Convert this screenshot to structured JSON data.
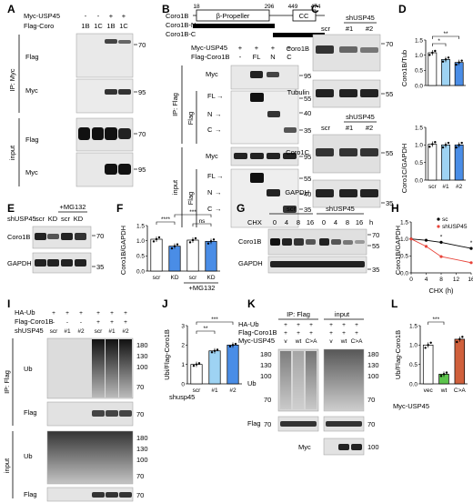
{
  "panels": {
    "A": {
      "letter": "A",
      "rows": [
        {
          "label": "Myc-USP45",
          "values": [
            "-",
            "-",
            "+",
            "+"
          ]
        },
        {
          "label": "Flag-Coro",
          "values": [
            "1B",
            "1C",
            "1B",
            "1C"
          ]
        }
      ],
      "ip_label": "IP: Myc",
      "input_label": "input",
      "blots": [
        "Flag",
        "Myc",
        "Flag",
        "Myc"
      ],
      "mw": [
        "70",
        "95",
        "70",
        "95"
      ]
    },
    "B": {
      "letter": "B",
      "domain": {
        "n18": "18",
        "n296": "296",
        "n449": "449",
        "n474": "474",
        "propeller": "β-Propeller",
        "cc": "CC"
      },
      "constructs": [
        "Coro1B",
        "Coro1B-N",
        "Coro1B-C"
      ],
      "rows": [
        {
          "label": "Myc-USP45",
          "values": [
            "+",
            "+",
            "+",
            "+"
          ]
        },
        {
          "label": "Flag-Coro1B",
          "values": [
            "-",
            "FL",
            "N",
            "C"
          ]
        }
      ],
      "ip_label": "IP: Flag",
      "input_label": "input",
      "blots": [
        "Myc",
        "Flag",
        "Myc",
        "Flag"
      ],
      "arrows": [
        "FL",
        "N",
        "C"
      ],
      "mw_ip_myc": [
        "95"
      ],
      "mw_ip_flag": [
        "55",
        "40",
        "35"
      ],
      "mw_in_myc": [
        "95"
      ],
      "mw_in_flag": [
        "55",
        "40",
        "35"
      ]
    },
    "C": {
      "letter": "C",
      "header": "shUSP45",
      "lanes": [
        "scr",
        "#1",
        "#2"
      ],
      "blots": [
        "Coro1B",
        "Tubulin",
        "Coro1C",
        "GAPDH"
      ],
      "mw": [
        "70",
        "55",
        "55",
        "35"
      ]
    },
    "D": {
      "letter": "D",
      "top_ylabel": "Coro1B/Tub",
      "bottom_ylabel": "Coro1C/GAPDH",
      "yticks": [
        "0.0",
        "0.5",
        "1.0",
        "1.5"
      ],
      "xlabels": [
        "scr",
        "#1",
        "#2"
      ],
      "sig": [
        "*",
        "**"
      ]
    },
    "E": {
      "letter": "E",
      "treatment": "+MG132",
      "row_label": "shUSP45",
      "lanes": [
        "scr",
        "KD",
        "scr",
        "KD"
      ],
      "blots": [
        "Coro1B",
        "GAPDH"
      ],
      "mw": [
        "70",
        "35"
      ]
    },
    "F": {
      "letter": "F",
      "ylabel": "Coro1B/GAPDH",
      "yticks": [
        "0.0",
        "0.5",
        "1.0",
        "1.5"
      ],
      "xlabels": [
        "scr",
        "KD",
        "scr",
        "KD"
      ],
      "treatment": "+MG132",
      "sig": [
        "****",
        "***",
        "ns"
      ]
    },
    "G": {
      "letter": "G",
      "groups": [
        "scr",
        "shUSP45"
      ],
      "row_label": "CHX",
      "times": [
        "0",
        "4",
        "8",
        "16",
        "0",
        "4",
        "8",
        "16"
      ],
      "unit": "h",
      "blots": [
        "Coro1B",
        "GAPDH"
      ],
      "mw": [
        "70",
        "55",
        "35"
      ]
    },
    "H": {
      "letter": "H",
      "ylabel": "Coro1B/GAPDH",
      "xlabel": "CHX (h)",
      "yticks": [
        "0.0",
        "0.5",
        "1.0",
        "1.5"
      ],
      "xticks": [
        "0",
        "4",
        "8",
        "12",
        "16"
      ],
      "legend": [
        "sc",
        "shUSP45"
      ],
      "sig": [
        "*",
        "*"
      ]
    },
    "I": {
      "letter": "I",
      "rows": [
        {
          "label": "HA-Ub",
          "values": [
            "+",
            "+",
            "+",
            "+",
            "+",
            "+"
          ]
        },
        {
          "label": "Flag-Coro1B",
          "values": [
            "-",
            "-",
            "-",
            "+",
            "+",
            "+"
          ]
        },
        {
          "label": "shUSP45",
          "values": [
            "scr",
            "#1",
            "#2",
            "scr",
            "#1",
            "#2"
          ]
        }
      ],
      "ip_label": "IP: Flag",
      "input_label": "input",
      "blots": [
        "Ub",
        "Flag",
        "Ub",
        "Flag"
      ],
      "mw_ub": [
        "180",
        "130",
        "100",
        "70"
      ],
      "mw_flag": [
        "70"
      ],
      "mw_in_ub": [
        "180",
        "130",
        "100",
        "70"
      ],
      "mw_in_flag": [
        "70"
      ]
    },
    "J": {
      "letter": "J",
      "ylabel": "Ubi/Flag-Coro1B",
      "yticks": [
        "0",
        "1",
        "2",
        "3"
      ],
      "xlabels": [
        "scr",
        "#1",
        "#2"
      ],
      "group_label": "shusp45",
      "sig": [
        "**",
        "***"
      ]
    },
    "K": {
      "letter": "K",
      "headers": [
        "IP: Flag",
        "input"
      ],
      "rows": [
        {
          "label": "HA-Ub",
          "values": [
            "+",
            "+",
            "+",
            "+",
            "+",
            "+"
          ]
        },
        {
          "label": "Flag-Coro1B",
          "values": [
            "+",
            "+",
            "+",
            "+",
            "+",
            "+"
          ]
        },
        {
          "label": "Myc-USP45",
          "values": [
            "v",
            "wt",
            "C>A",
            "v",
            "wt",
            "C>A"
          ]
        }
      ],
      "blots": [
        "Ub",
        "Flag",
        "Myc"
      ],
      "mw_left": [
        "180",
        "130",
        "100",
        "70",
        "70"
      ],
      "mw_right": [
        "180",
        "130",
        "100",
        "70",
        "70",
        "100"
      ]
    },
    "L": {
      "letter": "L",
      "ylabel": "Ub/Flag-Coro1B",
      "yticks": [
        "0.0",
        "0.5",
        "1.0",
        "1.5"
      ],
      "row_label": "Myc-USP45",
      "xlabels": [
        "vec",
        "wt",
        "C>A"
      ],
      "sig": [
        "***"
      ]
    }
  },
  "chart_data": [
    {
      "type": "bar",
      "panel": "D-top",
      "categories": [
        "scr",
        "#1",
        "#2"
      ],
      "values": [
        1.08,
        0.86,
        0.76
      ],
      "ylabel": "Coro1B/Tub",
      "ylim": [
        0,
        1.5
      ],
      "colors": [
        "#ffffff",
        "#9ed3f3",
        "#4a8de6"
      ]
    },
    {
      "type": "bar",
      "panel": "D-bottom",
      "categories": [
        "scr",
        "#1",
        "#2"
      ],
      "values": [
        1.02,
        1.0,
        1.0
      ],
      "ylabel": "Coro1C/GAPDH",
      "ylim": [
        0,
        1.5
      ],
      "colors": [
        "#ffffff",
        "#9ed3f3",
        "#4a8de6"
      ]
    },
    {
      "type": "bar",
      "panel": "F",
      "categories": [
        "scr",
        "KD",
        "scr",
        "KD"
      ],
      "values": [
        1.05,
        0.82,
        1.02,
        0.98
      ],
      "ylabel": "Coro1B/GAPDH",
      "ylim": [
        0,
        1.5
      ],
      "colors": [
        "#ffffff",
        "#4a8de6",
        "#ffffff",
        "#4a8de6"
      ]
    },
    {
      "type": "line",
      "panel": "H",
      "x": [
        0,
        4,
        8,
        16
      ],
      "series": [
        {
          "name": "sc",
          "values": [
            1.0,
            0.96,
            0.9,
            0.72
          ],
          "color": "#000000"
        },
        {
          "name": "shUSP45",
          "values": [
            1.0,
            0.78,
            0.48,
            0.3
          ],
          "color": "#e8443a"
        }
      ],
      "xlabel": "CHX (h)",
      "ylabel": "Coro1B/GAPDH",
      "xlim": [
        0,
        16
      ],
      "ylim": [
        0,
        1.5
      ]
    },
    {
      "type": "bar",
      "panel": "J",
      "categories": [
        "scr",
        "#1",
        "#2"
      ],
      "values": [
        1.0,
        1.7,
        2.0
      ],
      "ylabel": "Ubi/Flag-Coro1B",
      "ylim": [
        0,
        3
      ],
      "colors": [
        "#ffffff",
        "#9ed3f3",
        "#4a8de6"
      ]
    },
    {
      "type": "bar",
      "panel": "L",
      "categories": [
        "vec",
        "wt",
        "C>A"
      ],
      "values": [
        1.0,
        0.25,
        1.15
      ],
      "ylabel": "Ub/Flag-Coro1B",
      "ylim": [
        0,
        1.5
      ],
      "colors": [
        "#ffffff",
        "#5cc44c",
        "#d0603c"
      ]
    }
  ]
}
